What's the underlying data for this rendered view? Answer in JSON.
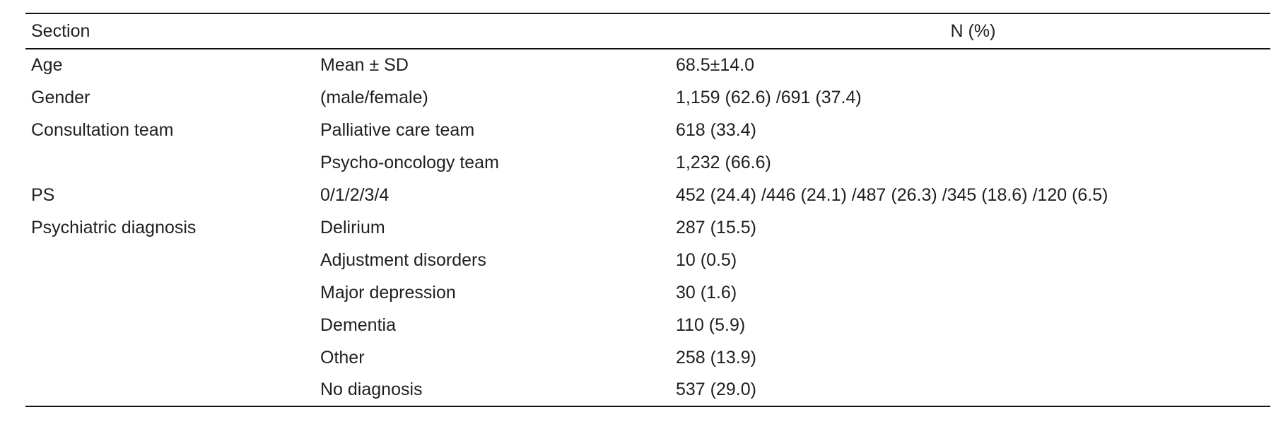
{
  "table": {
    "header": {
      "section": "Section",
      "n_percent": "N (%)"
    },
    "rows": [
      {
        "section": "Age",
        "label": "Mean ± SD",
        "value": "68.5±14.0"
      },
      {
        "section": "Gender",
        "label": "(male/female)",
        "value": "1,159 (62.6) /691 (37.4)"
      },
      {
        "section": "Consultation team",
        "label": "Palliative care team",
        "value": "618 (33.4)"
      },
      {
        "section": "",
        "label": "Psycho-oncology team",
        "value": "1,232 (66.6)"
      },
      {
        "section": "PS",
        "label": "0/1/2/3/4",
        "value": "452 (24.4) /446 (24.1) /487 (26.3) /345 (18.6) /120 (6.5)"
      },
      {
        "section": "Psychiatric diagnosis",
        "label": "Delirium",
        "value": "287 (15.5)"
      },
      {
        "section": "",
        "label": "Adjustment disorders",
        "value": "10 (0.5)"
      },
      {
        "section": "",
        "label": "Major depression",
        "value": "30 (1.6)"
      },
      {
        "section": "",
        "label": "Dementia",
        "value": "110 (5.9)"
      },
      {
        "section": "",
        "label": "Other",
        "value": "258 (13.9)"
      },
      {
        "section": "",
        "label": "No diagnosis",
        "value": "537 (29.0)"
      }
    ],
    "colors": {
      "text": "#1f1f1f",
      "rule": "#121212",
      "background": "#ffffff"
    }
  }
}
